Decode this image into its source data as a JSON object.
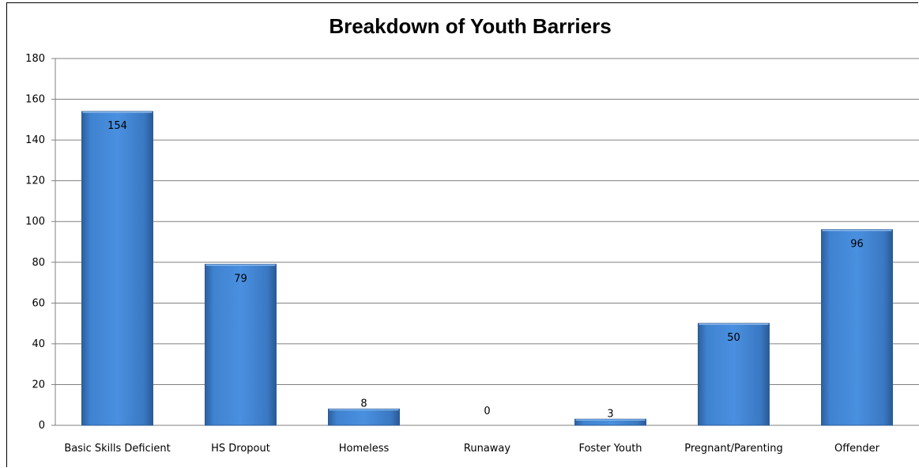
{
  "chart_data": {
    "type": "bar",
    "title": "Breakdown of Youth Barriers",
    "xlabel": "",
    "ylabel": "",
    "ylim": [
      0,
      180
    ],
    "yticks": [
      0,
      20,
      40,
      60,
      80,
      100,
      120,
      140,
      160,
      180
    ],
    "categories": [
      "Basic Skills Deficient",
      "HS Dropout",
      "Homeless",
      "Runaway",
      "Foster Youth",
      "Pregnant/Parenting",
      "Offender"
    ],
    "values": [
      154,
      79,
      8,
      0,
      3,
      50,
      96
    ],
    "data_labels": [
      "154",
      "79",
      "8",
      "0",
      "3",
      "50",
      "96"
    ],
    "grid": true,
    "legend": "none",
    "bar_color": "#3a7bc8"
  }
}
